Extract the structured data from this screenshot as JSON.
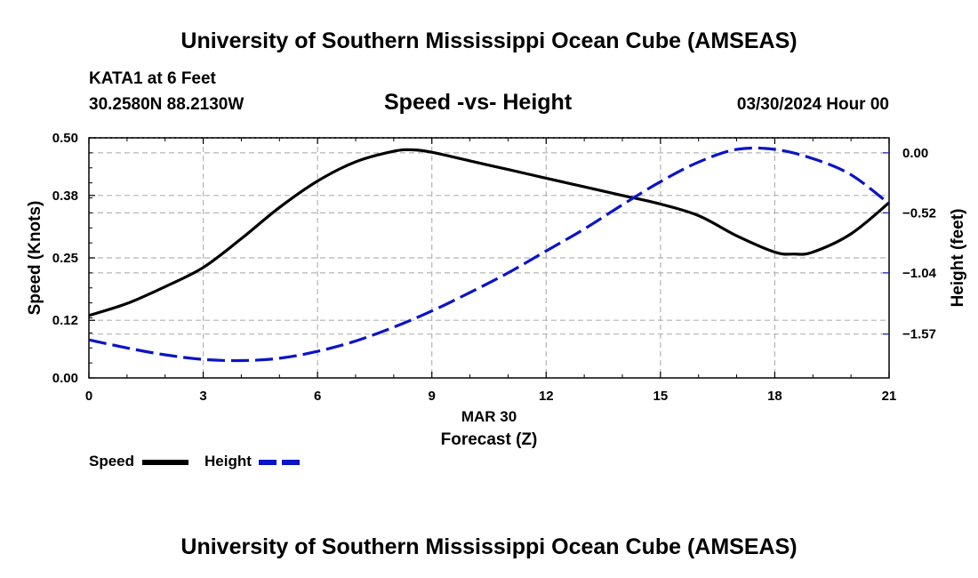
{
  "header": {
    "title": "University of Southern Mississippi Ocean Cube (AMSEAS)",
    "station": "KATA1 at 6 Feet",
    "coords": "30.2580N  88.2130W",
    "date": "03/30/2024 Hour 00"
  },
  "footer": {
    "title": "University of Southern Mississippi Ocean Cube (AMSEAS)"
  },
  "legend": {
    "speed_label": "Speed",
    "height_label": "Height"
  },
  "colors": {
    "speed": "#000000",
    "height": "#0a14c8",
    "grid": "#b4b4b4"
  },
  "chart_data": {
    "type": "line",
    "title": "Speed -vs- Height",
    "xlabel_date": "MAR 30",
    "xlabel": "Forecast (Z)",
    "ylabel": "Speed (Knots)",
    "y2label": "Height (feet)",
    "xlim": [
      0,
      21
    ],
    "ylim": [
      0,
      0.5
    ],
    "y2lim": [
      -1.95,
      0.13
    ],
    "x_ticks": [
      "0",
      "3",
      "6",
      "9",
      "12",
      "15",
      "18",
      "21"
    ],
    "y_ticks": [
      "0.00",
      "0.12",
      "0.25",
      "0.38",
      "0.50"
    ],
    "y2_ticks": [
      "0.00",
      "-0.52",
      "-1.04",
      "-1.57"
    ],
    "series": [
      {
        "name": "Speed",
        "axis": "left",
        "style": "solid",
        "x": [
          0,
          1,
          2,
          3,
          4,
          5,
          6,
          7,
          8,
          8.5,
          9,
          10,
          11,
          12,
          13,
          14,
          15,
          16,
          17,
          18,
          18.5,
          19,
          20,
          21
        ],
        "values": [
          0.13,
          0.155,
          0.19,
          0.23,
          0.29,
          0.355,
          0.41,
          0.45,
          0.472,
          0.475,
          0.47,
          0.452,
          0.434,
          0.416,
          0.398,
          0.38,
          0.362,
          0.338,
          0.296,
          0.262,
          0.258,
          0.262,
          0.3,
          0.365
        ]
      },
      {
        "name": "Height",
        "axis": "right",
        "style": "dashed",
        "x": [
          0,
          1,
          2,
          3,
          4,
          5,
          6,
          7,
          8,
          9,
          10,
          11,
          12,
          13,
          14,
          15,
          16,
          17,
          18,
          19,
          20,
          21
        ],
        "values": [
          -1.62,
          -1.69,
          -1.75,
          -1.79,
          -1.8,
          -1.78,
          -1.72,
          -1.63,
          -1.51,
          -1.37,
          -1.21,
          -1.04,
          -0.85,
          -0.66,
          -0.45,
          -0.25,
          -0.08,
          0.03,
          0.03,
          -0.05,
          -0.19,
          -0.44
        ]
      }
    ]
  }
}
